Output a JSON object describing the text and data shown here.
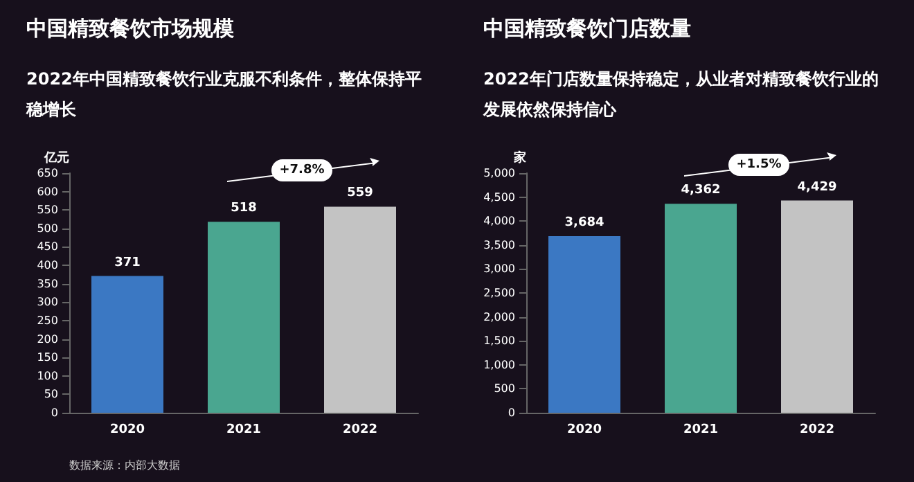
{
  "chart_data": [
    {
      "type": "bar",
      "title": "中国精致餐饮市场规模",
      "subtitle": "2022年中国精致餐饮行业克服不利条件，整体保持平稳增长",
      "ylabel": "亿元",
      "categories": [
        "2020",
        "2021",
        "2022"
      ],
      "values": [
        371,
        518,
        559
      ],
      "colors": [
        "#3b78c3",
        "#4aa690",
        "#c3c3c3"
      ],
      "ylim": [
        0,
        650
      ],
      "yticks": [
        0,
        50,
        100,
        150,
        200,
        250,
        300,
        350,
        400,
        450,
        500,
        550,
        600,
        650
      ],
      "data_labels": true,
      "grid": false,
      "annotations": [
        "+7.8%",
        "数据来源：内部大数据"
      ]
    },
    {
      "type": "bar",
      "title": "中国精致餐饮门店数量",
      "subtitle": "2022年门店数量保持稳定，从业者对精致餐饮行业的发展依然保持信心",
      "ylabel": "家",
      "categories": [
        "2020",
        "2021",
        "2022"
      ],
      "values": [
        3684,
        4362,
        4429
      ],
      "value_labels": [
        "3,684",
        "4,362",
        "4,429"
      ],
      "colors": [
        "#3b78c3",
        "#4aa690",
        "#c3c3c3"
      ],
      "ylim": [
        0,
        5000
      ],
      "yticks": [
        0,
        500,
        {
          "value": 1000,
          "label": "1,000"
        },
        {
          "value": 1500,
          "label": "1,500"
        },
        {
          "value": 2000,
          "label": "2,000"
        },
        {
          "value": 2500,
          "label": "2,500"
        },
        {
          "value": 3000,
          "label": "3,000"
        },
        {
          "value": 3500,
          "label": "3,500"
        },
        {
          "value": 4000,
          "label": "4,000"
        },
        {
          "value": 4500,
          "label": "4,500"
        },
        {
          "value": 5000,
          "label": "5,000"
        }
      ],
      "grid": false,
      "annotations": [
        "+1.5%"
      ]
    }
  ]
}
